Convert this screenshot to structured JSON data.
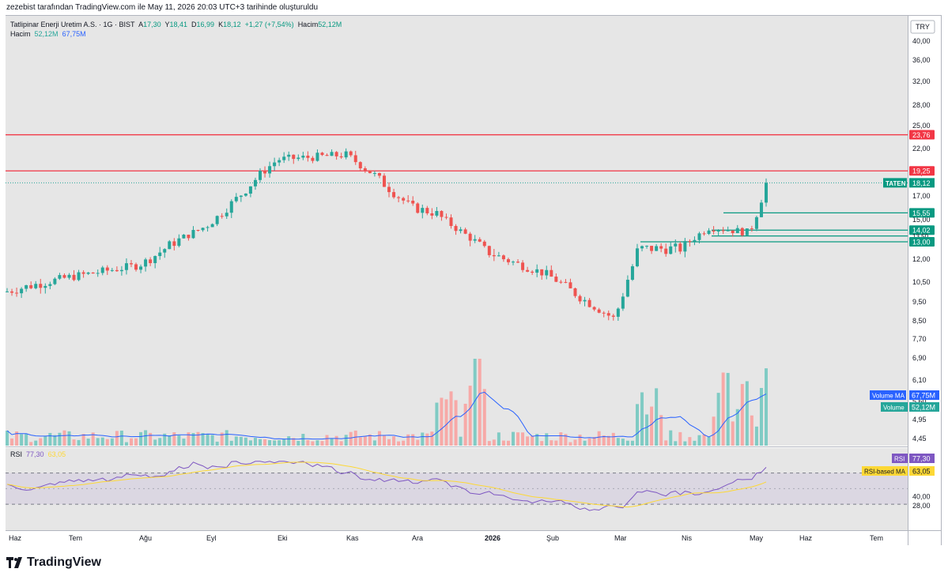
{
  "header": {
    "caption": "zezebist tarafından TradingView.com ile May 11, 2026 20:03 UTC+3 tarihinde oluşturuldu"
  },
  "legend": {
    "symbol": "Tatlipinar Enerji Uretim A.S. · 1G · BIST",
    "o_label": "A",
    "o_value": "17,30",
    "h_label": "Y",
    "h_value": "18,41",
    "l_label": "D",
    "l_value": "16,99",
    "c_label": "K",
    "c_value": "18,12",
    "change": "+1,27 (+7,54%)",
    "vol_label": "Hacim",
    "vol_value": "52,12M",
    "row2_label": "Hacim",
    "row2_vol": "52,12M",
    "row2_volma": "67,75M"
  },
  "rsi_legend": {
    "label": "RSI",
    "value": "77,30",
    "ma_value": "63,05"
  },
  "footer": {
    "brand": "TradingView"
  },
  "colors": {
    "up": "#26a69a",
    "down": "#ef5350",
    "vol_up": "#80cbc4",
    "vol_down": "#f7a9a7",
    "vol_ma": "#2962ff",
    "rsi": "#7e57c2",
    "rsi_ma": "#fdd835",
    "hline_red": "#f23645",
    "hline_green": "#089981",
    "bg_plot": "#e6e6e6"
  },
  "chart_data": {
    "type": "candlestick",
    "symbol": "TATEN",
    "currency": "TRY",
    "price_axis": {
      "scale": "log",
      "ticks": [
        "40,00",
        "36,00",
        "32,00",
        "28,00",
        "25,00",
        "22,00",
        "19,00",
        "17,00",
        "15,00",
        "13,00",
        "12,00",
        "10,50",
        "9,50",
        "8,50",
        "7,70",
        "6,90",
        "6,10",
        "5,60",
        "4,95",
        "4,45"
      ]
    },
    "time_axis": {
      "ticks": [
        "Haz",
        "Tem",
        "Ağu",
        "Eyl",
        "Eki",
        "Kas",
        "Ara",
        "2026",
        "Şub",
        "Mar",
        "Nis",
        "May",
        "Haz",
        "Tem"
      ]
    },
    "last_price": 18.12,
    "last_price_label": "18,12",
    "ticker_label": "TATEN",
    "horizontal_lines": [
      {
        "price": 23.76,
        "label": "23,76",
        "color": "red"
      },
      {
        "price": 19.25,
        "label": "19,25",
        "color": "red"
      },
      {
        "price": 15.55,
        "label": "15,55",
        "color": "green"
      },
      {
        "price": 14.02,
        "label": "14,02",
        "color": "green"
      },
      {
        "price": 13.5,
        "label": "13,50",
        "color": "green"
      },
      {
        "price": 13.0,
        "label": "13,00",
        "color": "green"
      }
    ],
    "price_anchors": [
      [
        "Haz",
        10.0
      ],
      [
        "Tem",
        10.8
      ],
      [
        "Ağu",
        11.6
      ],
      [
        "Eyl",
        14.4
      ],
      [
        "Eki",
        20.6
      ],
      [
        "Kas",
        21.2
      ],
      [
        "Ara",
        16.0
      ],
      [
        "Ara+",
        15.5
      ],
      [
        "2026",
        12.5
      ],
      [
        "Şub",
        11.0
      ],
      [
        "Mar",
        8.6
      ],
      [
        "Mar+",
        12.6
      ],
      [
        "Nis",
        12.6
      ],
      [
        "Nis+",
        14.3
      ],
      [
        "May",
        13.8
      ],
      [
        "May+",
        18.12
      ]
    ],
    "volume": {
      "label": "Volume",
      "value_label": "52,12M",
      "ma_label": "Volume MA",
      "ma_value_label": "67,75M"
    },
    "rsi": {
      "label": "RSI",
      "value": 77.3,
      "value_label": "77,30",
      "ma_label": "RSI-based MA",
      "ma_value": 63.05,
      "ma_value_label": "63,05",
      "ticks": [
        "40,00",
        "28,00"
      ],
      "upper_band": 70,
      "lower_band": 30
    }
  }
}
